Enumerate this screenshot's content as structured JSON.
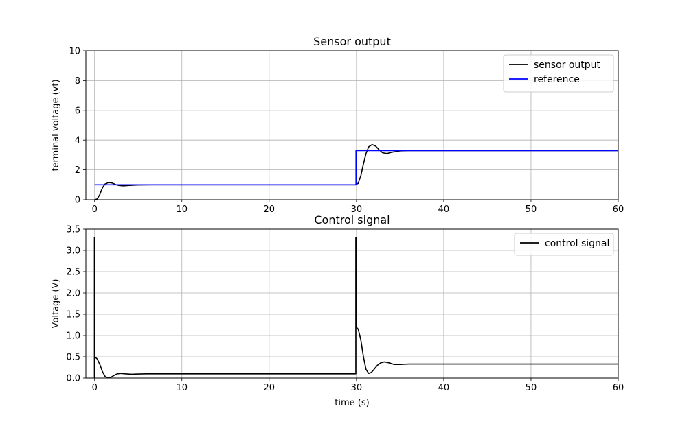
{
  "chart_data": [
    {
      "type": "line",
      "title": "Sensor output",
      "xlabel": "",
      "ylabel": "terminal voltage (vt)",
      "xlim": [
        -1,
        60
      ],
      "ylim": [
        0,
        10
      ],
      "xticks": [
        0,
        10,
        20,
        30,
        40,
        50,
        60
      ],
      "yticks": [
        0,
        2,
        4,
        6,
        8,
        10
      ],
      "ytick_labels": [
        "0",
        "2",
        "4",
        "6",
        "8",
        "10"
      ],
      "grid": true,
      "legend": "top-right",
      "series": [
        {
          "name": "sensor output",
          "color": "#000000",
          "points": [
            [
              0,
              0
            ],
            [
              0.3,
              0.05
            ],
            [
              0.6,
              0.35
            ],
            [
              0.9,
              0.8
            ],
            [
              1.2,
              1.05
            ],
            [
              1.6,
              1.15
            ],
            [
              2.0,
              1.12
            ],
            [
              2.4,
              1.02
            ],
            [
              2.8,
              0.95
            ],
            [
              3.3,
              0.93
            ],
            [
              4.0,
              0.96
            ],
            [
              5.0,
              0.99
            ],
            [
              6.5,
              1.0
            ],
            [
              29.9,
              1.0
            ],
            [
              30.2,
              1.1
            ],
            [
              30.5,
              1.6
            ],
            [
              30.8,
              2.4
            ],
            [
              31.1,
              3.1
            ],
            [
              31.4,
              3.55
            ],
            [
              31.8,
              3.7
            ],
            [
              32.2,
              3.6
            ],
            [
              32.6,
              3.35
            ],
            [
              33.0,
              3.15
            ],
            [
              33.5,
              3.1
            ],
            [
              34.0,
              3.18
            ],
            [
              35.0,
              3.28
            ],
            [
              36.0,
              3.3
            ],
            [
              60,
              3.3
            ]
          ]
        },
        {
          "name": "reference",
          "color": "#0000ff",
          "points": [
            [
              0,
              1.0
            ],
            [
              29.95,
              1.0
            ],
            [
              29.95,
              3.3
            ],
            [
              60,
              3.3
            ]
          ]
        }
      ]
    },
    {
      "type": "line",
      "title": "Control signal",
      "xlabel": "time (s)",
      "ylabel": "Voltage (V)",
      "xlim": [
        -1,
        60
      ],
      "ylim": [
        0,
        3.5
      ],
      "xticks": [
        0,
        10,
        20,
        30,
        40,
        50,
        60
      ],
      "yticks": [
        0,
        0.5,
        1.0,
        1.5,
        2.0,
        2.5,
        3.0,
        3.5
      ],
      "ytick_labels": [
        "0.0",
        "0.5",
        "1.0",
        "1.5",
        "2.0",
        "2.5",
        "3.0",
        "3.5"
      ],
      "grid": true,
      "legend": "top-right",
      "series": [
        {
          "name": "control signal",
          "color": "#000000",
          "points": [
            [
              -0.02,
              0
            ],
            [
              -0.02,
              3.3
            ],
            [
              0.02,
              3.3
            ],
            [
              0.02,
              0.5
            ],
            [
              0.3,
              0.45
            ],
            [
              0.6,
              0.32
            ],
            [
              0.9,
              0.15
            ],
            [
              1.2,
              0.04
            ],
            [
              1.5,
              0.0
            ],
            [
              1.8,
              0.01
            ],
            [
              2.2,
              0.06
            ],
            [
              2.6,
              0.1
            ],
            [
              3.0,
              0.11
            ],
            [
              3.5,
              0.1
            ],
            [
              4.2,
              0.09
            ],
            [
              5.0,
              0.095
            ],
            [
              6.0,
              0.1
            ],
            [
              29.93,
              0.1
            ],
            [
              29.93,
              3.3
            ],
            [
              29.97,
              3.3
            ],
            [
              29.97,
              1.2
            ],
            [
              30.2,
              1.15
            ],
            [
              30.5,
              0.9
            ],
            [
              30.8,
              0.5
            ],
            [
              31.1,
              0.2
            ],
            [
              31.4,
              0.11
            ],
            [
              31.7,
              0.13
            ],
            [
              32.0,
              0.2
            ],
            [
              32.4,
              0.3
            ],
            [
              32.8,
              0.36
            ],
            [
              33.2,
              0.38
            ],
            [
              33.7,
              0.36
            ],
            [
              34.3,
              0.32
            ],
            [
              35.0,
              0.32
            ],
            [
              36.0,
              0.33
            ],
            [
              60,
              0.33
            ]
          ]
        }
      ]
    }
  ]
}
